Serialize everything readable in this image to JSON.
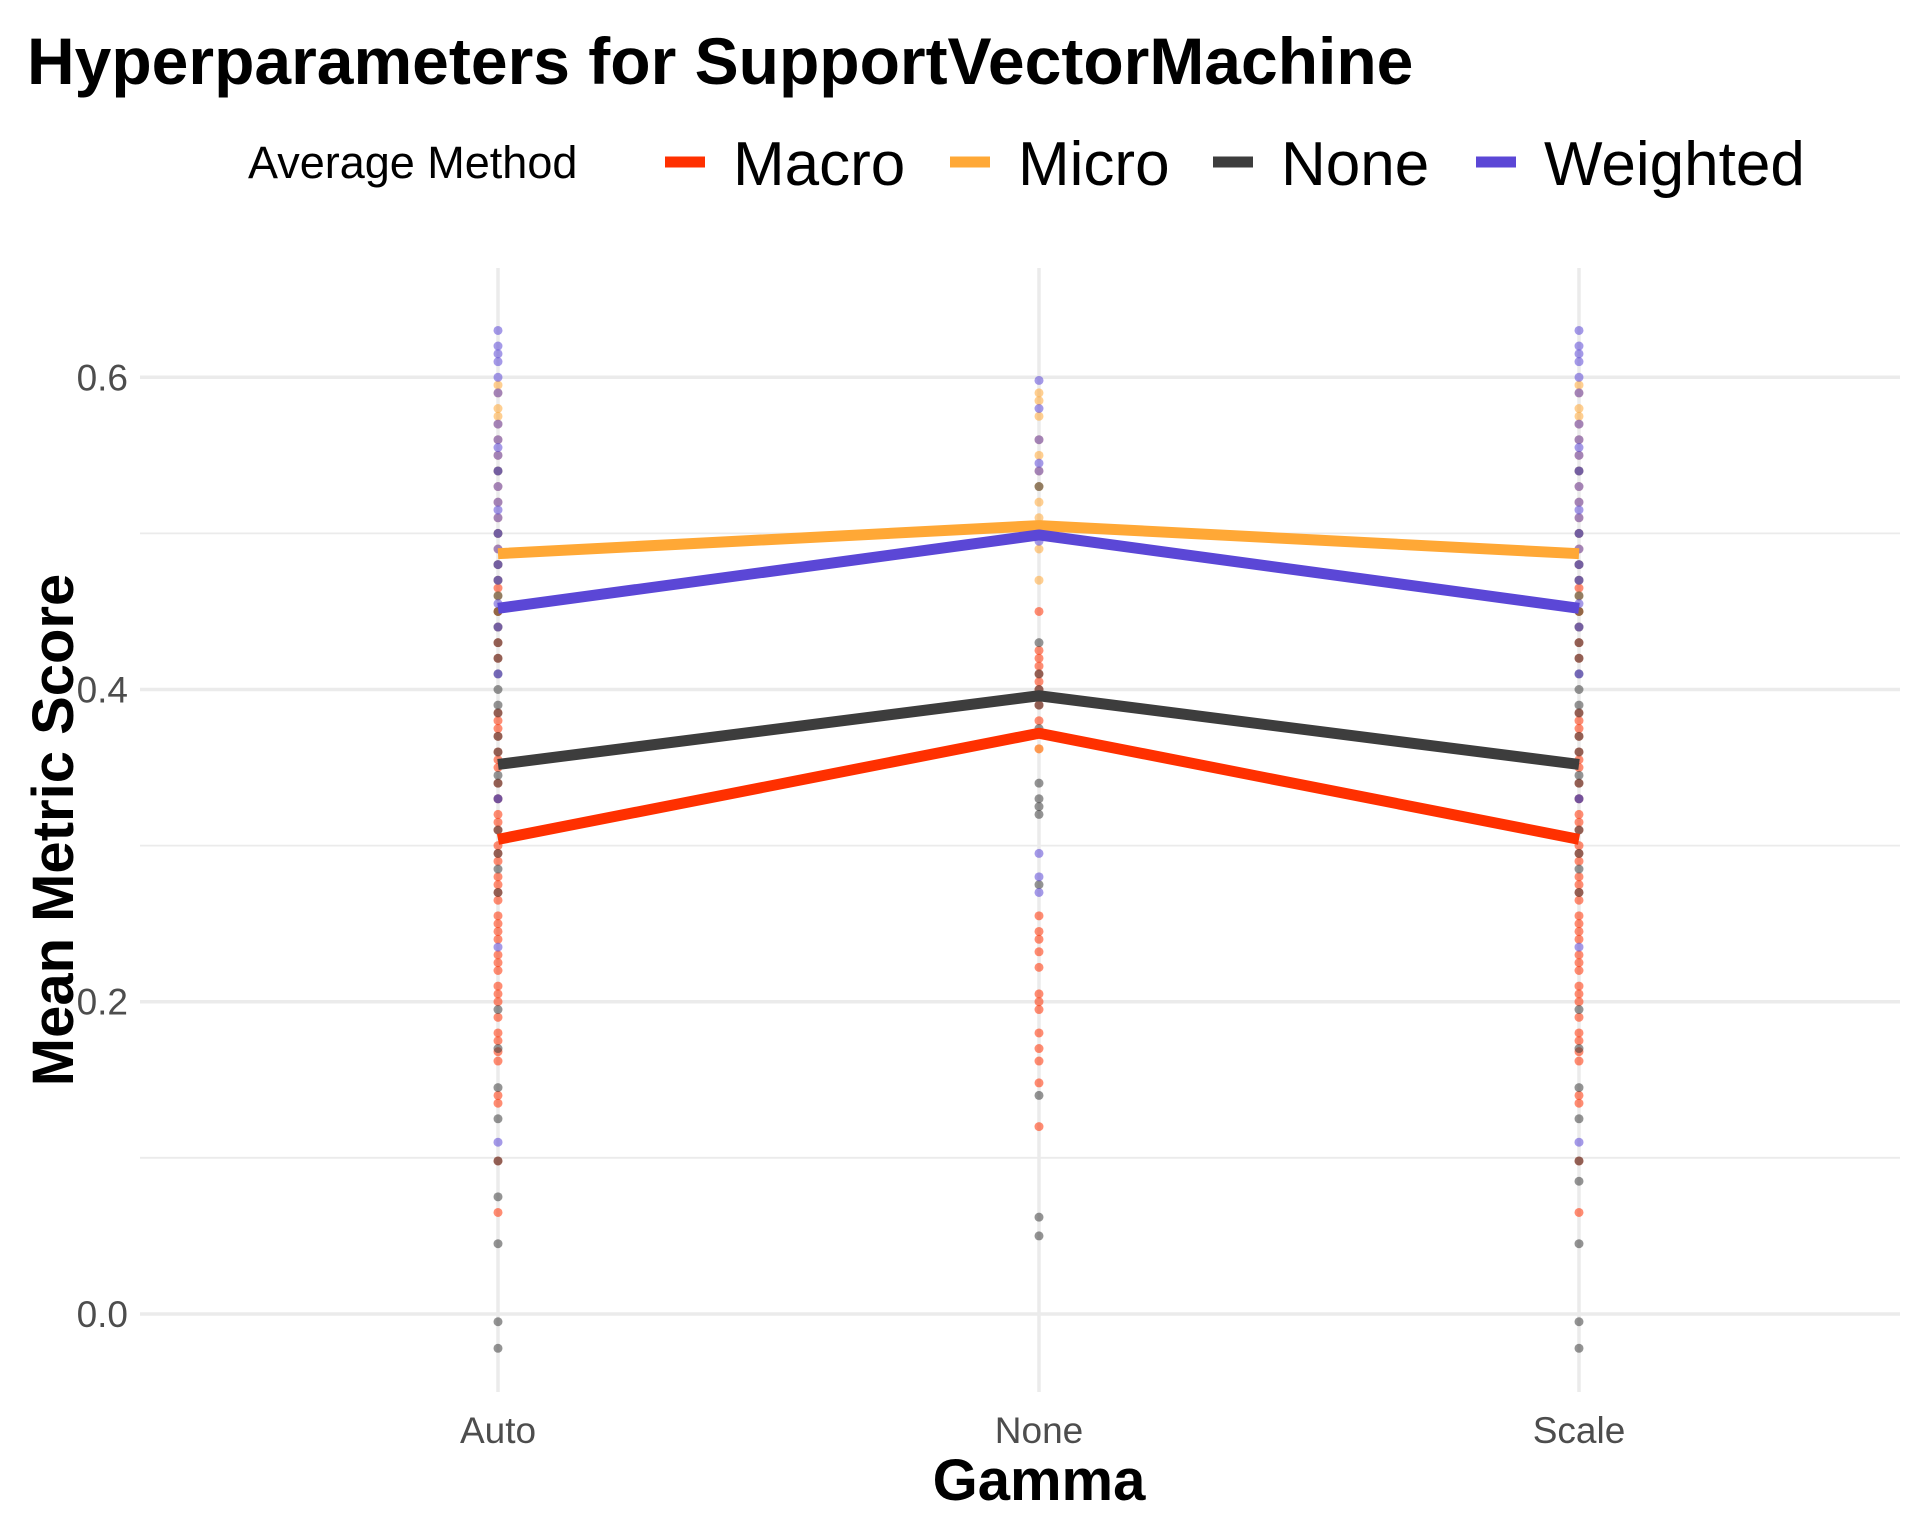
{
  "chart_data": {
    "type": "line",
    "title": "Hyperparameters for SupportVectorMachine",
    "xlabel": "Gamma",
    "ylabel": "Mean Metric Score",
    "categories": [
      "Auto",
      "None",
      "Scale"
    ],
    "ylim": [
      -0.05,
      0.67
    ],
    "y_ticks": [
      "0.0",
      "0.2",
      "0.4",
      "0.6"
    ],
    "y_tick_values": [
      0.0,
      0.2,
      0.4,
      0.6
    ],
    "grid": true,
    "legend": {
      "title": "Average Method",
      "placement": "top"
    },
    "series": [
      {
        "name": "Macro",
        "color": "#ff3000",
        "values": [
          0.304,
          0.372,
          0.304
        ],
        "points": [
          [
            0.065,
            0.098,
            0.135,
            0.14,
            0.162,
            0.168,
            0.175,
            0.18,
            0.19,
            0.2,
            0.205,
            0.21,
            0.22,
            0.225,
            0.23,
            0.24,
            0.245,
            0.25,
            0.255,
            0.265,
            0.27,
            0.275,
            0.28,
            0.29,
            0.295,
            0.3,
            0.31,
            0.315,
            0.32,
            0.33,
            0.34,
            0.35,
            0.355,
            0.36,
            0.37,
            0.375,
            0.38,
            0.385,
            0.42,
            0.43,
            0.45,
            0.465
          ],
          [
            0.12,
            0.148,
            0.162,
            0.17,
            0.18,
            0.195,
            0.2,
            0.205,
            0.222,
            0.232,
            0.24,
            0.245,
            0.255,
            0.362,
            0.372,
            0.38,
            0.39,
            0.395,
            0.4,
            0.405,
            0.41,
            0.415,
            0.42,
            0.425,
            0.45
          ],
          [
            0.065,
            0.098,
            0.135,
            0.14,
            0.162,
            0.168,
            0.175,
            0.18,
            0.19,
            0.2,
            0.205,
            0.21,
            0.22,
            0.225,
            0.23,
            0.24,
            0.245,
            0.25,
            0.255,
            0.265,
            0.27,
            0.275,
            0.28,
            0.29,
            0.295,
            0.3,
            0.31,
            0.315,
            0.32,
            0.33,
            0.34,
            0.35,
            0.355,
            0.36,
            0.37,
            0.375,
            0.38,
            0.385,
            0.42,
            0.43,
            0.45,
            0.465
          ]
        ]
      },
      {
        "name": "Micro",
        "color": "#ffa836",
        "values": [
          0.487,
          0.505,
          0.487
        ],
        "points": [
          [
            0.44,
            0.45,
            0.46,
            0.47,
            0.48,
            0.49,
            0.5,
            0.51,
            0.52,
            0.53,
            0.54,
            0.55,
            0.56,
            0.57,
            0.575,
            0.58,
            0.59,
            0.595
          ],
          [
            0.362,
            0.47,
            0.49,
            0.5,
            0.505,
            0.51,
            0.52,
            0.53,
            0.54,
            0.55,
            0.56,
            0.575,
            0.585,
            0.59
          ],
          [
            0.44,
            0.45,
            0.46,
            0.47,
            0.48,
            0.49,
            0.5,
            0.51,
            0.52,
            0.53,
            0.54,
            0.55,
            0.56,
            0.57,
            0.575,
            0.58,
            0.59,
            0.595
          ]
        ]
      },
      {
        "name": "None",
        "color": "#3d3d3d",
        "values": [
          0.352,
          0.396,
          0.352
        ],
        "points": [
          [
            -0.022,
            -0.005,
            0.045,
            0.075,
            0.098,
            0.125,
            0.145,
            0.17,
            0.195,
            0.27,
            0.285,
            0.295,
            0.31,
            0.33,
            0.34,
            0.345,
            0.36,
            0.37,
            0.385,
            0.39,
            0.4,
            0.41,
            0.42,
            0.43,
            0.44,
            0.45,
            0.46,
            0.47,
            0.48,
            0.5,
            0.54
          ],
          [
            0.05,
            0.062,
            0.14,
            0.275,
            0.32,
            0.325,
            0.33,
            0.34,
            0.375,
            0.39,
            0.395,
            0.4,
            0.41,
            0.43,
            0.5,
            0.53
          ],
          [
            -0.022,
            -0.005,
            0.045,
            0.085,
            0.098,
            0.125,
            0.145,
            0.17,
            0.195,
            0.27,
            0.285,
            0.295,
            0.31,
            0.33,
            0.34,
            0.345,
            0.36,
            0.37,
            0.385,
            0.39,
            0.4,
            0.41,
            0.42,
            0.43,
            0.44,
            0.45,
            0.46,
            0.47,
            0.48,
            0.5,
            0.54
          ]
        ]
      },
      {
        "name": "Weighted",
        "color": "#5b47d6",
        "values": [
          0.452,
          0.499,
          0.452
        ],
        "points": [
          [
            0.11,
            0.235,
            0.33,
            0.41,
            0.44,
            0.455,
            0.47,
            0.48,
            0.49,
            0.5,
            0.51,
            0.515,
            0.52,
            0.53,
            0.54,
            0.55,
            0.555,
            0.56,
            0.57,
            0.59,
            0.6,
            0.61,
            0.615,
            0.62,
            0.63
          ],
          [
            0.27,
            0.28,
            0.295,
            0.495,
            0.5,
            0.54,
            0.545,
            0.56,
            0.58,
            0.598
          ],
          [
            0.11,
            0.235,
            0.33,
            0.41,
            0.44,
            0.455,
            0.47,
            0.48,
            0.49,
            0.5,
            0.51,
            0.515,
            0.52,
            0.53,
            0.54,
            0.55,
            0.555,
            0.56,
            0.57,
            0.59,
            0.6,
            0.61,
            0.615,
            0.62,
            0.63
          ]
        ]
      }
    ]
  }
}
